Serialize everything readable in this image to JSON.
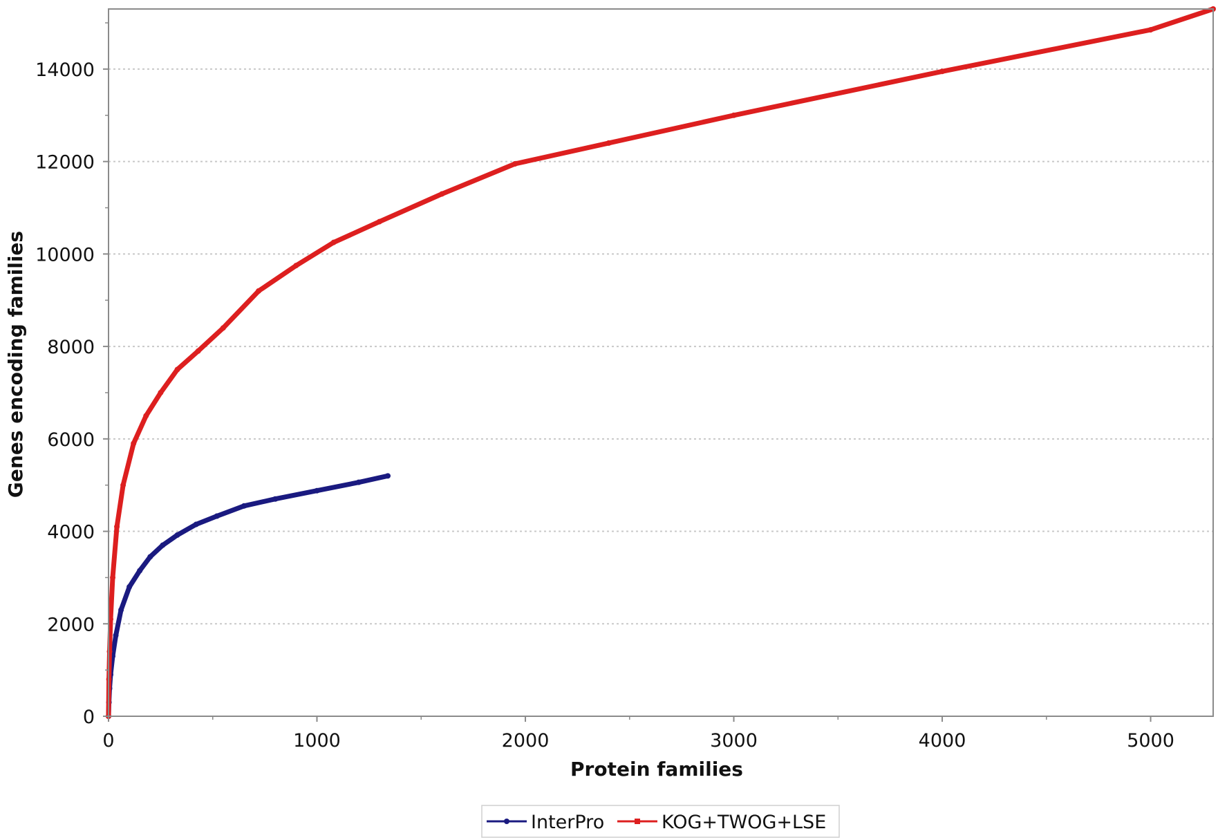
{
  "chart_data": {
    "type": "line",
    "xlabel": "Protein families",
    "ylabel": "Genes encoding families",
    "xlim": [
      0,
      5300
    ],
    "ylim": [
      0,
      15300
    ],
    "x_ticks": [
      0,
      1000,
      2000,
      3000,
      4000,
      5000
    ],
    "y_ticks": [
      0,
      2000,
      4000,
      6000,
      8000,
      10000,
      12000,
      14000
    ],
    "grid": "horizontal dotted",
    "legend_position": "bottom",
    "series": [
      {
        "name": "InterPro",
        "color": "#1a1a80",
        "points": [
          [
            0,
            0
          ],
          [
            2,
            300
          ],
          [
            5,
            600
          ],
          [
            10,
            900
          ],
          [
            20,
            1300
          ],
          [
            35,
            1750
          ],
          [
            60,
            2300
          ],
          [
            100,
            2800
          ],
          [
            150,
            3150
          ],
          [
            200,
            3450
          ],
          [
            260,
            3700
          ],
          [
            330,
            3920
          ],
          [
            420,
            4150
          ],
          [
            520,
            4330
          ],
          [
            650,
            4550
          ],
          [
            800,
            4700
          ],
          [
            1000,
            4880
          ],
          [
            1200,
            5060
          ],
          [
            1340,
            5200
          ]
        ]
      },
      {
        "name": "KOG+TWOG+LSE",
        "color": "#dd1f1f",
        "points": [
          [
            0,
            0
          ],
          [
            2,
            800
          ],
          [
            5,
            1400
          ],
          [
            10,
            2100
          ],
          [
            20,
            3000
          ],
          [
            40,
            4100
          ],
          [
            70,
            5000
          ],
          [
            120,
            5900
          ],
          [
            180,
            6500
          ],
          [
            250,
            7000
          ],
          [
            330,
            7500
          ],
          [
            430,
            7900
          ],
          [
            550,
            8400
          ],
          [
            720,
            9200
          ],
          [
            900,
            9750
          ],
          [
            1080,
            10250
          ],
          [
            1300,
            10700
          ],
          [
            1600,
            11300
          ],
          [
            1950,
            11950
          ],
          [
            2400,
            12400
          ],
          [
            3000,
            13000
          ],
          [
            4000,
            13950
          ],
          [
            5000,
            14850
          ],
          [
            5300,
            15300
          ]
        ]
      }
    ]
  }
}
